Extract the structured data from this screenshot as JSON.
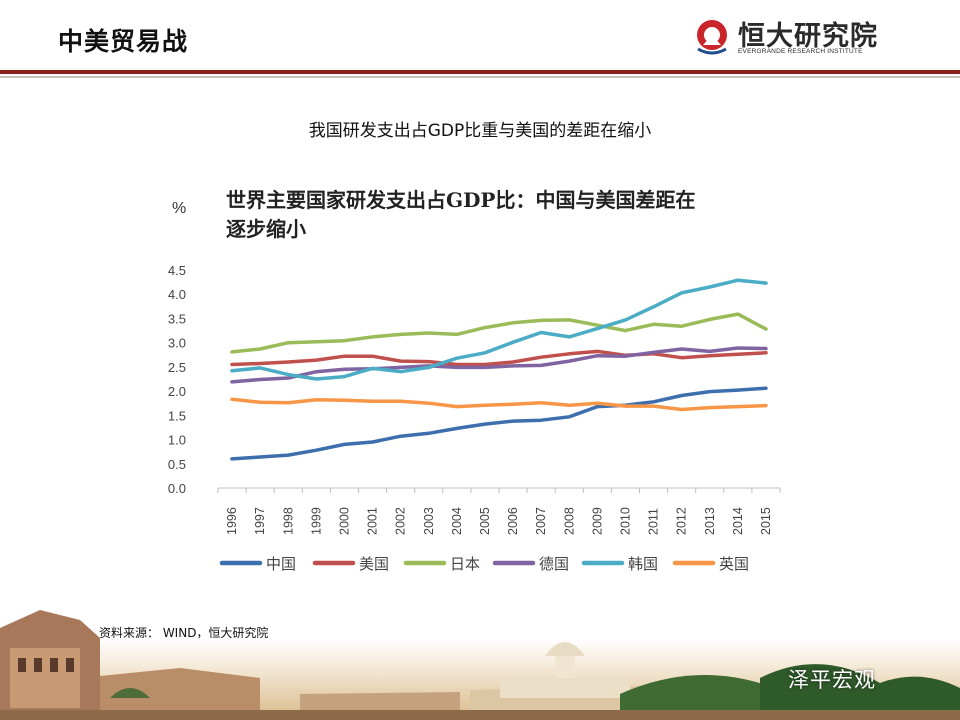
{
  "header": {
    "title": "中美贸易战",
    "logo_name": "恒大研究院",
    "logo_subtitle": "EVERGRANDE RESEARCH INSTITUTE"
  },
  "slide_title": "我国研发支出占GDP比重与美国的差距在缩小",
  "source_note": "资料来源： WIND，恒大研究院",
  "watermark": "泽平宏观",
  "colors": {
    "accent_red": "#8d1f1d",
    "rule_gray": "#c9c3bd"
  },
  "chart_data": {
    "type": "line",
    "title_line1": "世界主要国家研发支出占GDP比：中国与美国差距在",
    "title_line2": "逐步缩小",
    "unit_label": "%",
    "x": [
      "1996",
      "1997",
      "1998",
      "1999",
      "2000",
      "2001",
      "2002",
      "2003",
      "2004",
      "2005",
      "2006",
      "2007",
      "2008",
      "2009",
      "2010",
      "2011",
      "2012",
      "2013",
      "2014",
      "2015"
    ],
    "yticks": [
      "0.0",
      "0.5",
      "1.0",
      "1.5",
      "2.0",
      "2.5",
      "3.0",
      "3.5",
      "4.0",
      "4.5"
    ],
    "ylim": [
      0,
      4.5
    ],
    "grid": false,
    "legend_position": "bottom",
    "series": [
      {
        "name": "中国",
        "color": "#3d6fae",
        "values": [
          0.6,
          0.64,
          0.68,
          0.78,
          0.9,
          0.95,
          1.07,
          1.13,
          1.23,
          1.32,
          1.38,
          1.4,
          1.47,
          1.68,
          1.71,
          1.78,
          1.91,
          1.99,
          2.02,
          2.06
        ]
      },
      {
        "name": "美国",
        "color": "#c0504d",
        "values": [
          2.55,
          2.57,
          2.6,
          2.64,
          2.72,
          2.72,
          2.62,
          2.61,
          2.55,
          2.55,
          2.6,
          2.7,
          2.77,
          2.82,
          2.74,
          2.77,
          2.69,
          2.73,
          2.76,
          2.79
        ]
      },
      {
        "name": "日本",
        "color": "#9bbb59",
        "values": [
          2.81,
          2.87,
          3.0,
          3.02,
          3.04,
          3.12,
          3.17,
          3.2,
          3.17,
          3.31,
          3.41,
          3.46,
          3.47,
          3.36,
          3.25,
          3.38,
          3.34,
          3.48,
          3.59,
          3.28
        ]
      },
      {
        "name": "德国",
        "color": "#8064a2",
        "values": [
          2.19,
          2.24,
          2.27,
          2.4,
          2.45,
          2.46,
          2.49,
          2.52,
          2.49,
          2.49,
          2.52,
          2.53,
          2.62,
          2.73,
          2.72,
          2.8,
          2.87,
          2.82,
          2.89,
          2.88
        ]
      },
      {
        "name": "韩国",
        "color": "#4bacc6",
        "values": [
          2.42,
          2.48,
          2.34,
          2.25,
          2.3,
          2.47,
          2.4,
          2.49,
          2.68,
          2.79,
          3.01,
          3.21,
          3.12,
          3.29,
          3.47,
          3.74,
          4.03,
          4.15,
          4.29,
          4.23
        ]
      },
      {
        "name": "英国",
        "color": "#f79646",
        "values": [
          1.83,
          1.77,
          1.76,
          1.82,
          1.81,
          1.79,
          1.79,
          1.75,
          1.68,
          1.71,
          1.73,
          1.76,
          1.71,
          1.75,
          1.69,
          1.69,
          1.62,
          1.66,
          1.68,
          1.7
        ]
      }
    ]
  }
}
